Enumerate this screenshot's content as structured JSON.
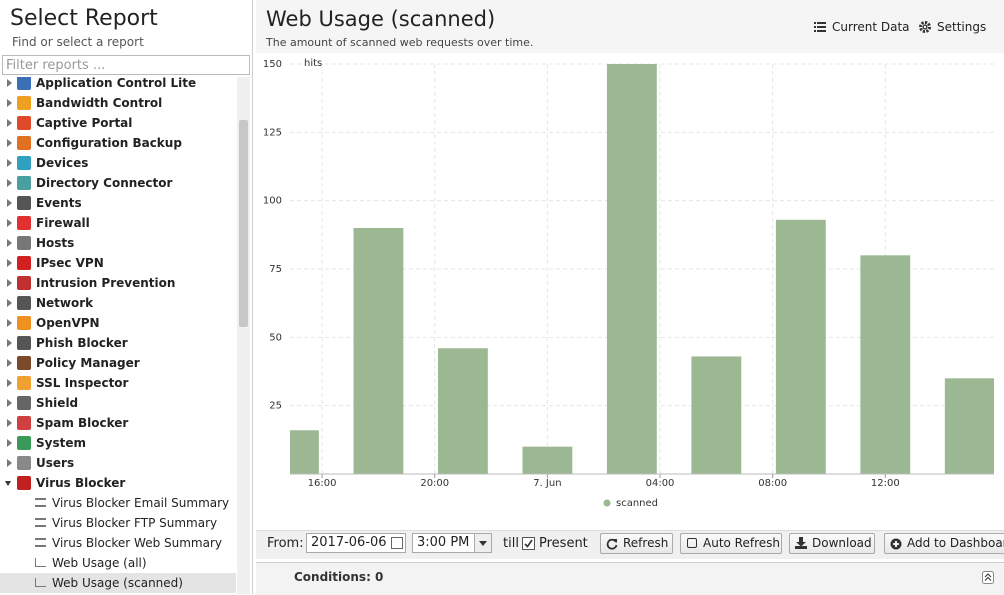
{
  "sidebar": {
    "title": "Select Report",
    "subtitle": "Find or select a report",
    "filter_placeholder": "Filter reports ...",
    "items": [
      "Application Control Lite",
      "Bandwidth Control",
      "Captive Portal",
      "Configuration Backup",
      "Devices",
      "Directory Connector",
      "Events",
      "Firewall",
      "Hosts",
      "IPsec VPN",
      "Intrusion Prevention",
      "Network",
      "OpenVPN",
      "Phish Blocker",
      "Policy Manager",
      "SSL Inspector",
      "Shield",
      "Spam Blocker",
      "System",
      "Users",
      "Virus Blocker"
    ],
    "children": [
      "Virus Blocker Email Summary",
      "Virus Blocker FTP Summary",
      "Virus Blocker Web Summary",
      "Web Usage (all)",
      "Web Usage (scanned)"
    ]
  },
  "header": {
    "title": "Web Usage (scanned)",
    "subtitle": "The amount of scanned web requests over time.",
    "buttons": [
      "Current Data",
      "Settings"
    ]
  },
  "chart_data": {
    "type": "bar",
    "y_label": "hits",
    "x": [
      15,
      18,
      21,
      24,
      27,
      30,
      33,
      36,
      39
    ],
    "series": [
      {
        "name": "scanned",
        "color": "#9bb893",
        "values": [
          16,
          90,
          46,
          10,
          150,
          43,
          93,
          80,
          35
        ]
      }
    ],
    "xlim": [
      14.86,
      39.86
    ],
    "xticks": [
      {
        "value": 16,
        "label": "16:00"
      },
      {
        "value": 20,
        "label": "20:00"
      },
      {
        "value": 24,
        "label": "7. Jun"
      },
      {
        "value": 28,
        "label": "04:00"
      },
      {
        "value": 32,
        "label": "08:00"
      },
      {
        "value": 36,
        "label": "12:00"
      }
    ],
    "ylim": [
      0,
      150
    ],
    "yticks": [
      25,
      50,
      75,
      100,
      125,
      150
    ],
    "grid": true
  },
  "toolbar": {
    "from_label": "From:",
    "date": "2017-06-06",
    "time": "3:00 PM",
    "till_label": "till",
    "present_label": "Present",
    "buttons": [
      "Refresh",
      "Auto Refresh",
      "Download",
      "Add to Dashboard"
    ]
  },
  "footer": {
    "conditions": "Conditions: 0"
  }
}
